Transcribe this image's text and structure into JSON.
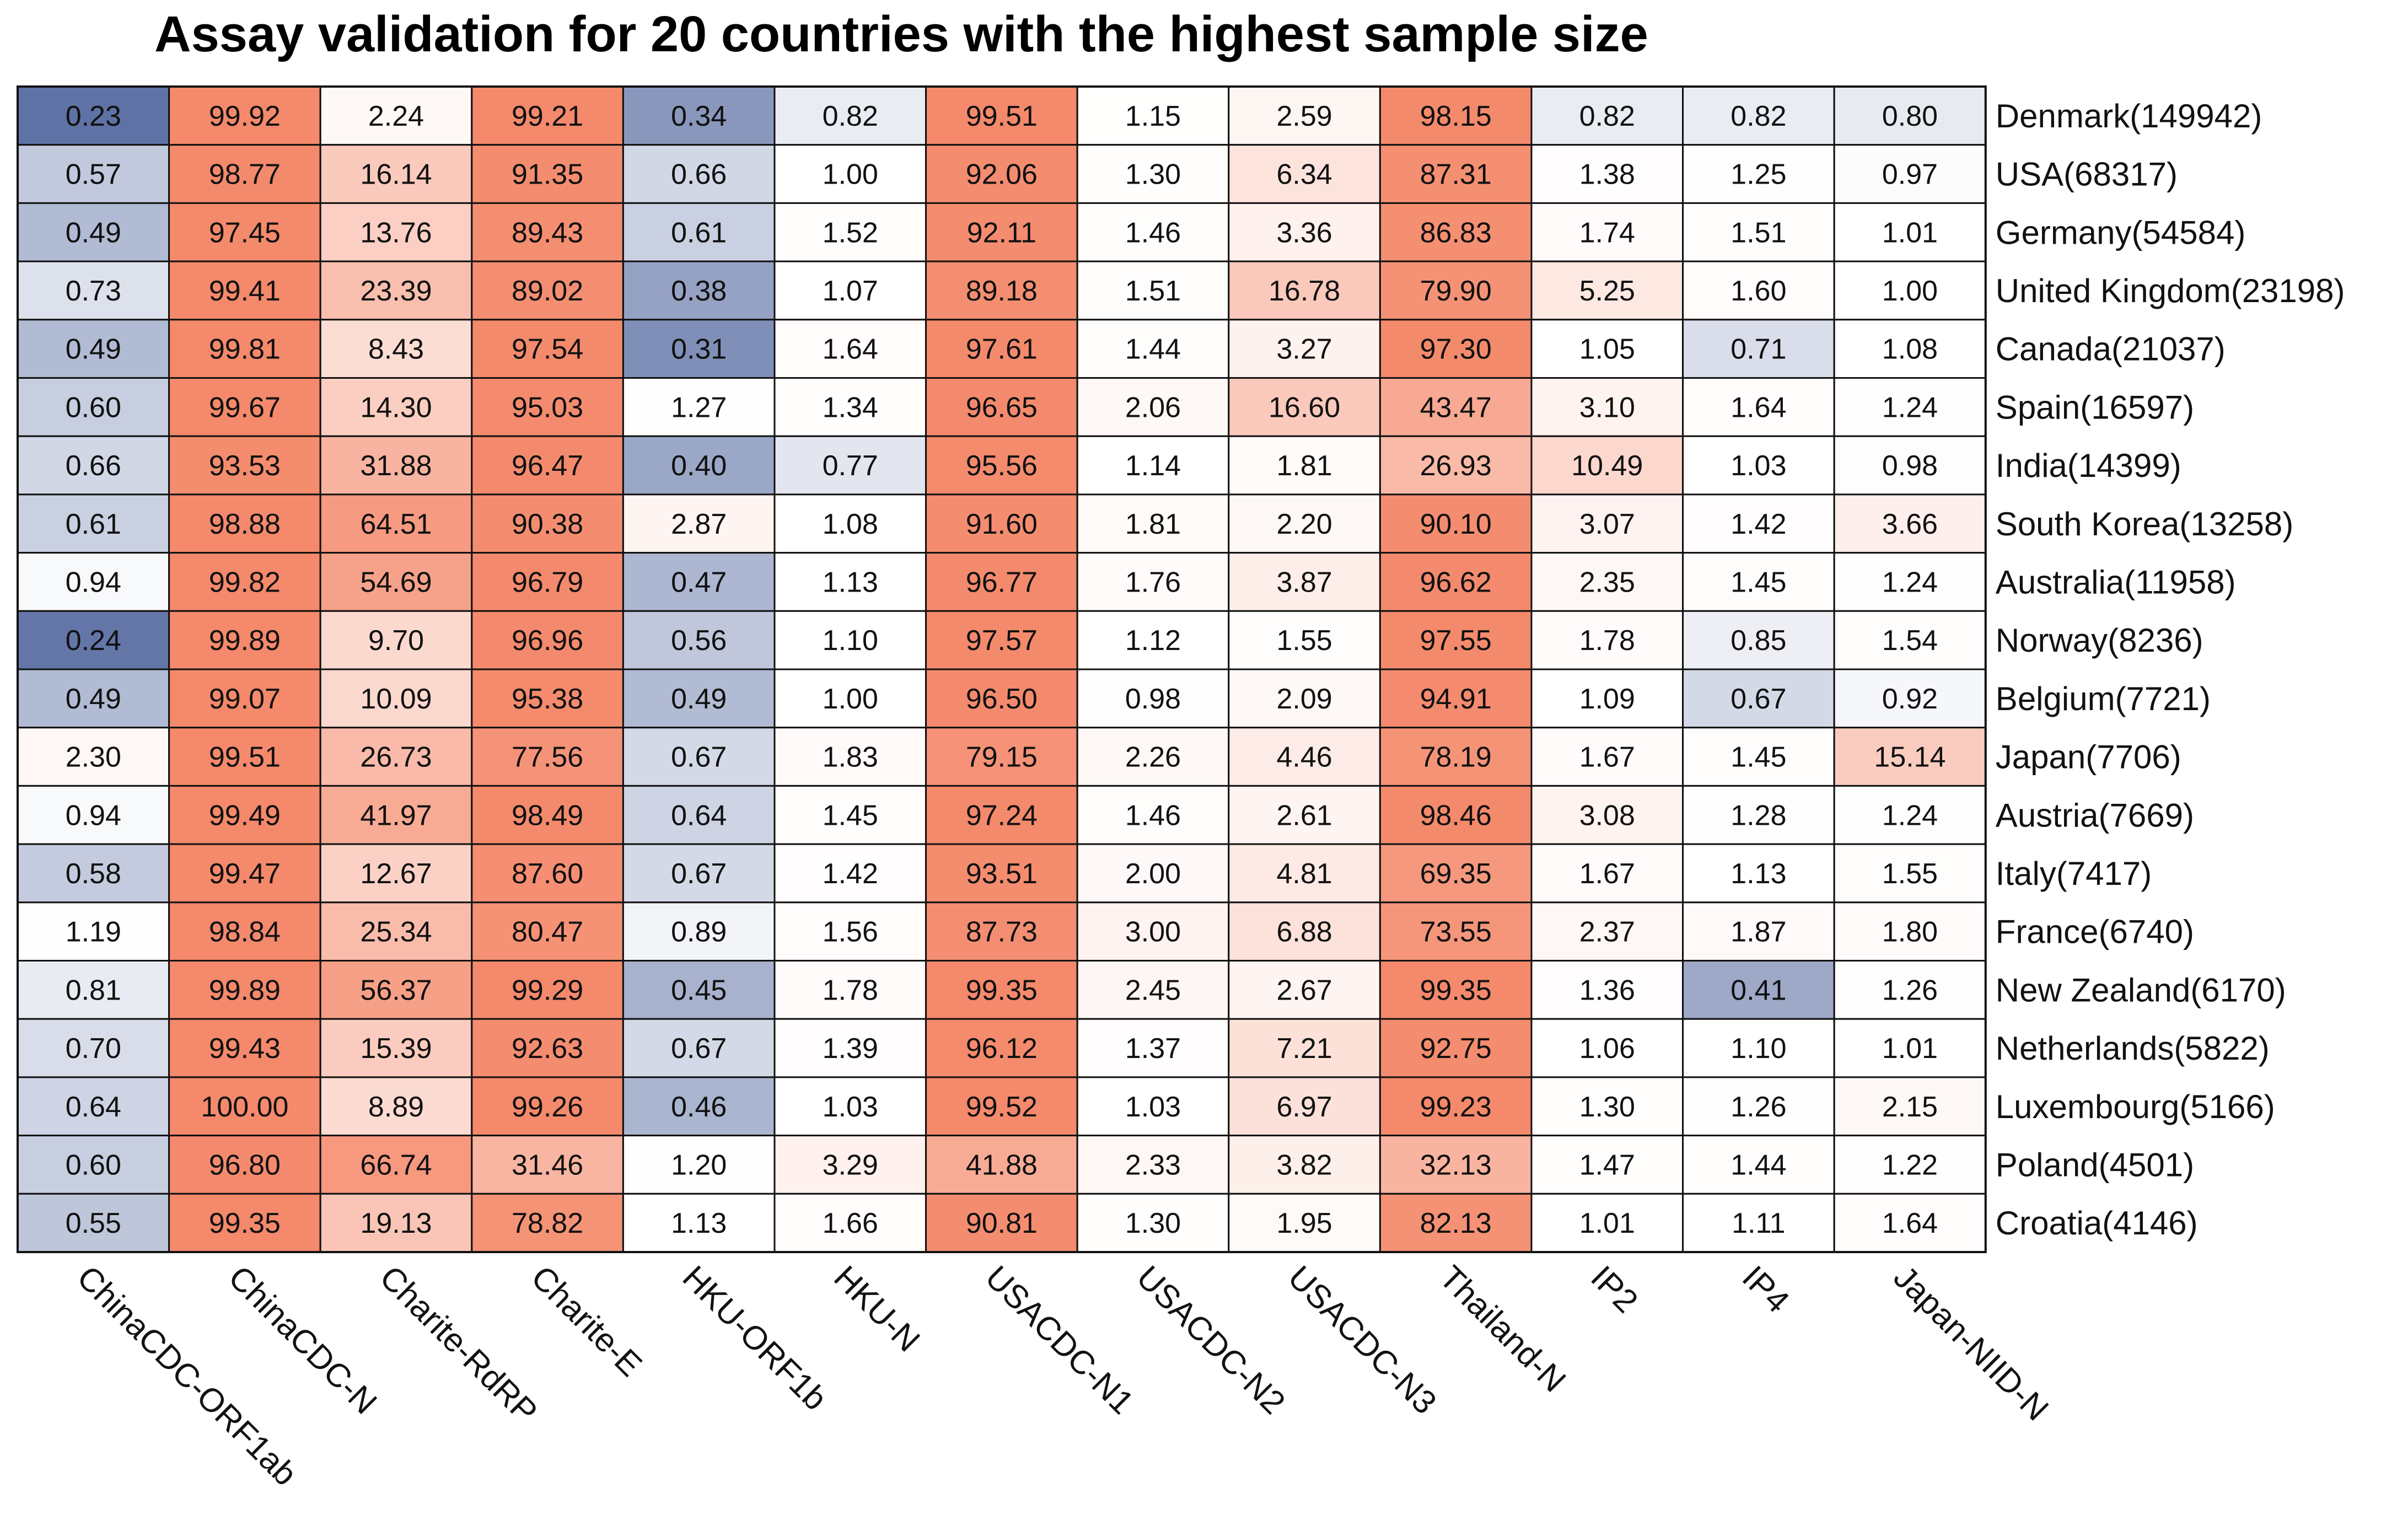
{
  "chart_data": {
    "type": "heatmap",
    "title": "Assay validation for 20 countries with the highest sample size",
    "columns": [
      "ChinaCDC-ORF1ab",
      "ChinaCDC-N",
      "Charite-RdRP",
      "Charite-E",
      "HKU-ORF1b",
      "HKU-N",
      "USACDC-N1",
      "USACDC-N2",
      "USACDC-N3",
      "Thailand-N",
      "IP2",
      "IP4",
      "Japan-NIID-N"
    ],
    "rows": [
      "Denmark(149942)",
      "USA(68317)",
      "Germany(54584)",
      "United Kingdom(23198)",
      "Canada(21037)",
      "Spain(16597)",
      "India(14399)",
      "South Korea(13258)",
      "Australia(11958)",
      "Norway(8236)",
      "Belgium(7721)",
      "Japan(7706)",
      "Austria(7669)",
      "Italy(7417)",
      "France(6740)",
      "New Zealand(6170)",
      "Netherlands(5822)",
      "Luxembourg(5166)",
      "Poland(4501)",
      "Croatia(4146)"
    ],
    "values": [
      [
        "0.23",
        "99.92",
        "2.24",
        "99.21",
        "0.34",
        "0.82",
        "99.51",
        "1.15",
        "2.59",
        "98.15",
        "0.82",
        "0.82",
        "0.80"
      ],
      [
        "0.57",
        "98.77",
        "16.14",
        "91.35",
        "0.66",
        "1.00",
        "92.06",
        "1.30",
        "6.34",
        "87.31",
        "1.38",
        "1.25",
        "0.97"
      ],
      [
        "0.49",
        "97.45",
        "13.76",
        "89.43",
        "0.61",
        "1.52",
        "92.11",
        "1.46",
        "3.36",
        "86.83",
        "1.74",
        "1.51",
        "1.01"
      ],
      [
        "0.73",
        "99.41",
        "23.39",
        "89.02",
        "0.38",
        "1.07",
        "89.18",
        "1.51",
        "16.78",
        "79.90",
        "5.25",
        "1.60",
        "1.00"
      ],
      [
        "0.49",
        "99.81",
        "8.43",
        "97.54",
        "0.31",
        "1.64",
        "97.61",
        "1.44",
        "3.27",
        "97.30",
        "1.05",
        "0.71",
        "1.08"
      ],
      [
        "0.60",
        "99.67",
        "14.30",
        "95.03",
        "1.27",
        "1.34",
        "96.65",
        "2.06",
        "16.60",
        "43.47",
        "3.10",
        "1.64",
        "1.24"
      ],
      [
        "0.66",
        "93.53",
        "31.88",
        "96.47",
        "0.40",
        "0.77",
        "95.56",
        "1.14",
        "1.81",
        "26.93",
        "10.49",
        "1.03",
        "0.98"
      ],
      [
        "0.61",
        "98.88",
        "64.51",
        "90.38",
        "2.87",
        "1.08",
        "91.60",
        "1.81",
        "2.20",
        "90.10",
        "3.07",
        "1.42",
        "3.66"
      ],
      [
        "0.94",
        "99.82",
        "54.69",
        "96.79",
        "0.47",
        "1.13",
        "96.77",
        "1.76",
        "3.87",
        "96.62",
        "2.35",
        "1.45",
        "1.24"
      ],
      [
        "0.24",
        "99.89",
        "9.70",
        "96.96",
        "0.56",
        "1.10",
        "97.57",
        "1.12",
        "1.55",
        "97.55",
        "1.78",
        "0.85",
        "1.54"
      ],
      [
        "0.49",
        "99.07",
        "10.09",
        "95.38",
        "0.49",
        "1.00",
        "96.50",
        "0.98",
        "2.09",
        "94.91",
        "1.09",
        "0.67",
        "0.92"
      ],
      [
        "2.30",
        "99.51",
        "26.73",
        "77.56",
        "0.67",
        "1.83",
        "79.15",
        "2.26",
        "4.46",
        "78.19",
        "1.67",
        "1.45",
        "15.14"
      ],
      [
        "0.94",
        "99.49",
        "41.97",
        "98.49",
        "0.64",
        "1.45",
        "97.24",
        "1.46",
        "2.61",
        "98.46",
        "3.08",
        "1.28",
        "1.24"
      ],
      [
        "0.58",
        "99.47",
        "12.67",
        "87.60",
        "0.67",
        "1.42",
        "93.51",
        "2.00",
        "4.81",
        "69.35",
        "1.67",
        "1.13",
        "1.55"
      ],
      [
        "1.19",
        "98.84",
        "25.34",
        "80.47",
        "0.89",
        "1.56",
        "87.73",
        "3.00",
        "6.88",
        "73.55",
        "2.37",
        "1.87",
        "1.80"
      ],
      [
        "0.81",
        "99.89",
        "56.37",
        "99.29",
        "0.45",
        "1.78",
        "99.35",
        "2.45",
        "2.67",
        "99.35",
        "1.36",
        "0.41",
        "1.26"
      ],
      [
        "0.70",
        "99.43",
        "15.39",
        "92.63",
        "0.67",
        "1.39",
        "96.12",
        "1.37",
        "7.21",
        "92.75",
        "1.06",
        "1.10",
        "1.01"
      ],
      [
        "0.64",
        "100.00",
        "8.89",
        "99.26",
        "0.46",
        "1.03",
        "99.52",
        "1.03",
        "6.97",
        "99.23",
        "1.30",
        "1.26",
        "2.15"
      ],
      [
        "0.60",
        "96.80",
        "66.74",
        "31.46",
        "1.20",
        "3.29",
        "41.88",
        "2.33",
        "3.82",
        "32.13",
        "1.47",
        "1.44",
        "1.22"
      ],
      [
        "0.55",
        "99.35",
        "19.13",
        "78.82",
        "1.13",
        "1.66",
        "90.81",
        "1.30",
        "1.95",
        "82.13",
        "1.01",
        "1.11",
        "1.64"
      ]
    ],
    "color_scale": {
      "type": "log-diverging",
      "low_color": "#5f72a5",
      "mid_color": "#ffffff",
      "high_color": "#f4896b",
      "domain": [
        0.23,
        1.0,
        100.0
      ]
    }
  }
}
